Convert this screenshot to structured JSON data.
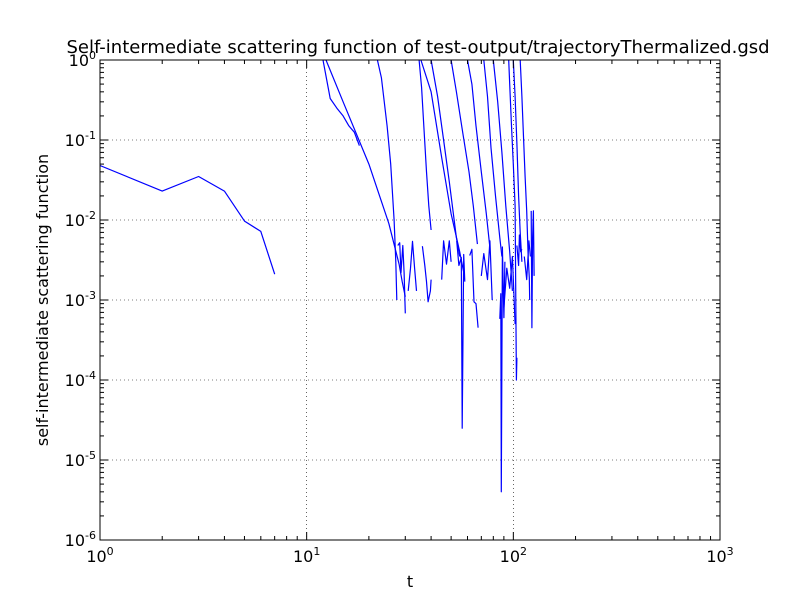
{
  "chart_data": {
    "type": "line",
    "title": "Self-intermediate scattering function of test-output/trajectoryThermalized.gsd",
    "xlabel": "t",
    "ylabel": "self-intermediate scattering function",
    "xscale": "log",
    "yscale": "log",
    "xlim": [
      1,
      1000
    ],
    "ylim": [
      1e-06,
      1
    ],
    "grid": "dotted",
    "legend": "none",
    "line_color": "#0000ff",
    "x_ticks": [
      {
        "value": 1,
        "base": "10",
        "exp": "0"
      },
      {
        "value": 10,
        "base": "10",
        "exp": "1"
      },
      {
        "value": 100,
        "base": "10",
        "exp": "2"
      },
      {
        "value": 1000,
        "base": "10",
        "exp": "3"
      }
    ],
    "y_ticks": [
      {
        "value": 1e-06,
        "base": "10",
        "exp": "-6"
      },
      {
        "value": 1e-05,
        "base": "10",
        "exp": "-5"
      },
      {
        "value": 0.0001,
        "base": "10",
        "exp": "-4"
      },
      {
        "value": 0.001,
        "base": "10",
        "exp": "-3"
      },
      {
        "value": 0.01,
        "base": "10",
        "exp": "-2"
      },
      {
        "value": 0.1,
        "base": "10",
        "exp": "-1"
      },
      {
        "value": 1,
        "base": "10",
        "exp": "0"
      }
    ],
    "series": [
      {
        "points": [
          [
            1,
            0.048
          ],
          [
            2,
            0.023
          ],
          [
            3,
            0.035
          ],
          [
            4,
            0.023
          ],
          [
            5,
            0.0097
          ],
          [
            6,
            0.0072
          ],
          [
            7,
            0.0021
          ]
        ]
      },
      {
        "points": [
          [
            12,
            1.0
          ],
          [
            13,
            0.33
          ],
          [
            14,
            0.25
          ],
          [
            15,
            0.2
          ],
          [
            16,
            0.15
          ],
          [
            17,
            0.125
          ],
          [
            18,
            0.085
          ]
        ]
      },
      {
        "points": [
          [
            12.4,
            1.0
          ],
          [
            15,
            0.3
          ],
          [
            20,
            0.05
          ],
          [
            25,
            0.009
          ],
          [
            28,
            0.0028
          ],
          [
            29,
            0.0017
          ],
          [
            30,
            0.0011
          ]
        ]
      },
      {
        "points": [
          [
            22,
            1.0
          ],
          [
            23,
            0.6
          ],
          [
            24.5,
            0.15
          ],
          [
            25.5,
            0.05
          ],
          [
            26.5,
            0.01
          ],
          [
            27,
            0.003
          ],
          [
            27.3,
            0.001
          ]
        ]
      },
      {
        "points": [
          [
            27.6,
            0.0048
          ],
          [
            28.2,
            0.0052
          ],
          [
            28.6,
            0.0022
          ],
          [
            29.2,
            0.0048
          ],
          [
            29.6,
            0.0022
          ],
          [
            30,
            0.00068
          ]
        ]
      },
      {
        "points": [
          [
            31,
            0.0013
          ],
          [
            31.8,
            0.0025
          ],
          [
            32.5,
            0.0054
          ],
          [
            33.3,
            0.0025
          ],
          [
            34,
            0.0013
          ]
        ]
      },
      {
        "points": [
          [
            35,
            1.0
          ],
          [
            36,
            0.45
          ],
          [
            37,
            0.13
          ],
          [
            38,
            0.04
          ],
          [
            39,
            0.015
          ],
          [
            40,
            0.0075
          ]
        ]
      },
      {
        "points": [
          [
            36.3,
            0.0047
          ],
          [
            37.3,
            0.0027
          ],
          [
            38,
            0.0017
          ],
          [
            38.7,
            0.00095
          ],
          [
            39.7,
            0.0013
          ],
          [
            40,
            0.0018
          ]
        ]
      },
      {
        "points": [
          [
            35.7,
            1.0
          ],
          [
            40,
            0.4
          ],
          [
            45,
            0.06
          ],
          [
            50,
            0.012
          ],
          [
            55,
            0.004
          ],
          [
            58,
            0.002
          ]
        ]
      },
      {
        "points": [
          [
            45,
            0.0018
          ],
          [
            46,
            0.0055
          ],
          [
            47.5,
            0.0028
          ],
          [
            49,
            0.0055
          ],
          [
            50,
            0.003
          ]
        ]
      },
      {
        "points": [
          [
            40,
            1.0
          ],
          [
            43,
            0.35
          ],
          [
            46,
            0.1
          ],
          [
            49,
            0.03
          ],
          [
            53,
            0.006
          ],
          [
            55,
            0.0035
          ]
        ]
      },
      {
        "points": [
          [
            53.2,
            0.0055
          ],
          [
            54.5,
            0.0027
          ],
          [
            56,
            0.0034
          ],
          [
            56.6,
            2.5e-05
          ],
          [
            57.5,
            0.0037
          ],
          [
            58.2,
            0.0017
          ]
        ]
      },
      {
        "points": [
          [
            50,
            1.0
          ],
          [
            53,
            0.4
          ],
          [
            57,
            0.12
          ],
          [
            61,
            0.04
          ],
          [
            64,
            0.015
          ],
          [
            67,
            0.005
          ]
        ]
      },
      {
        "points": [
          [
            61.5,
            0.0036
          ],
          [
            63,
            0.0043
          ],
          [
            64.5,
            0.00095
          ],
          [
            66,
            0.0009
          ],
          [
            67.5,
            0.00045
          ]
        ]
      },
      {
        "points": [
          [
            60,
            1.0
          ],
          [
            63,
            0.5
          ],
          [
            66,
            0.15
          ],
          [
            70,
            0.04
          ],
          [
            74,
            0.012
          ],
          [
            77,
            0.0045
          ]
        ]
      },
      {
        "points": [
          [
            70,
            0.002
          ],
          [
            72,
            0.0038
          ],
          [
            75,
            0.0018
          ],
          [
            77,
            0.0055
          ],
          [
            79,
            0.001
          ]
        ]
      },
      {
        "points": [
          [
            72,
            1.0
          ],
          [
            75,
            0.35
          ],
          [
            78,
            0.08
          ],
          [
            82,
            0.02
          ],
          [
            86,
            0.006
          ],
          [
            88,
            0.0035
          ]
        ]
      },
      {
        "points": [
          [
            86,
            0.00058
          ],
          [
            87,
            0.0012
          ],
          [
            87.5,
            4e-06
          ],
          [
            88.5,
            0.0046
          ],
          [
            90,
            0.0006
          ],
          [
            91,
            0.003
          ]
        ]
      },
      {
        "points": [
          [
            80,
            1.0
          ],
          [
            84,
            0.3
          ],
          [
            88,
            0.07
          ],
          [
            92,
            0.015
          ],
          [
            96,
            0.004
          ],
          [
            99,
            0.0013
          ]
        ]
      },
      {
        "points": [
          [
            90,
            0.0008
          ],
          [
            93,
            0.0025
          ],
          [
            96,
            0.0014
          ],
          [
            99,
            0.0035
          ],
          [
            102,
            0.0005
          ]
        ]
      },
      {
        "points": [
          [
            95,
            1.0
          ],
          [
            96,
            0.5
          ],
          [
            98,
            0.15
          ],
          [
            100,
            0.05
          ],
          [
            102,
            0.015
          ],
          [
            103.5,
            0.0001
          ],
          [
            104,
            0.00019
          ]
        ]
      },
      {
        "points": [
          [
            100,
            1.0
          ],
          [
            102,
            0.35
          ],
          [
            104,
            0.09
          ],
          [
            106,
            0.02
          ],
          [
            108,
            0.007
          ],
          [
            110,
            0.003
          ]
        ]
      },
      {
        "points": [
          [
            104,
            0.0048
          ],
          [
            106,
            0.0027
          ],
          [
            107,
            0.0065
          ],
          [
            108.5,
            0.004
          ],
          [
            110,
            0.0043
          ]
        ]
      },
      {
        "points": [
          [
            108,
            1.0
          ],
          [
            110,
            0.35
          ],
          [
            112,
            0.11
          ],
          [
            114,
            0.035
          ],
          [
            116,
            0.013
          ],
          [
            118,
            0.0034
          ],
          [
            119.5,
            0.0019
          ],
          [
            120,
            0.001
          ]
        ]
      },
      {
        "points": [
          [
            113,
            0.0035
          ],
          [
            116,
            0.0018
          ],
          [
            119,
            0.0055
          ],
          [
            121,
            0.0035
          ]
        ]
      },
      {
        "points": [
          [
            122,
            0.013
          ],
          [
            123,
            0.00045
          ],
          [
            124,
            0.006
          ],
          [
            125,
            0.013
          ],
          [
            126,
            0.002
          ]
        ]
      }
    ]
  }
}
